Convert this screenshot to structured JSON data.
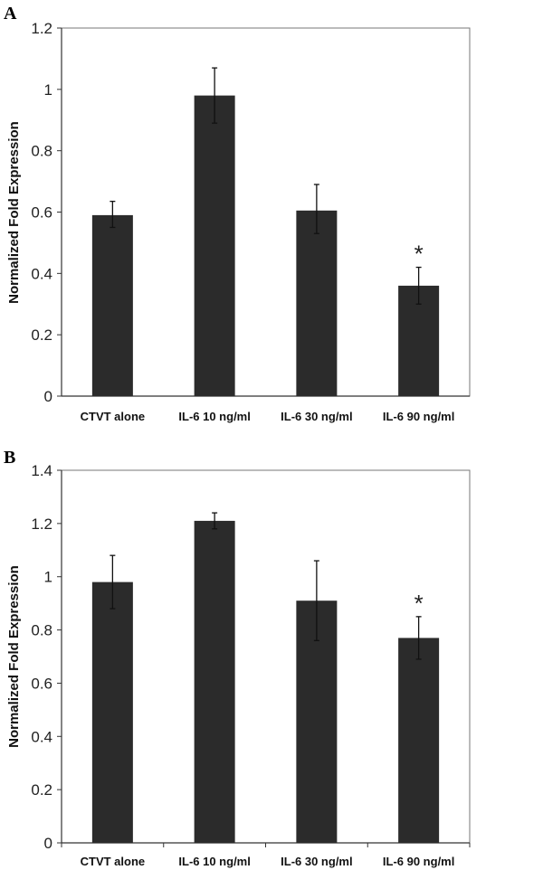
{
  "chart_data": [
    {
      "type": "bar",
      "panel_label": "A",
      "categories": [
        "CTVT alone",
        "IL-6 10 ng/ml",
        "IL-6 30 ng/ml",
        "IL-6 90 ng/ml"
      ],
      "values": [
        0.59,
        0.98,
        0.605,
        0.36
      ],
      "error_low": [
        0.55,
        0.89,
        0.53,
        0.3
      ],
      "error_high": [
        0.635,
        1.07,
        0.69,
        0.42
      ],
      "significance": [
        "",
        "",
        "",
        "*"
      ],
      "ylabel": "Normalized Fold Expression",
      "xlabel": "",
      "ylim": [
        0,
        1.2
      ],
      "yticks": [
        "0",
        "0.2",
        "0.4",
        "0.6",
        "0.8",
        "1",
        "1.2"
      ],
      "ytick_values": [
        0,
        0.2,
        0.4,
        0.6,
        0.8,
        1,
        1.2
      ],
      "bar_color": "#2b2b2b",
      "grid": false,
      "x_tick_marks": false
    },
    {
      "type": "bar",
      "panel_label": "B",
      "categories": [
        "CTVT alone",
        "IL-6 10 ng/ml",
        "IL-6 30 ng/ml",
        "IL-6 90 ng/ml"
      ],
      "values": [
        0.98,
        1.21,
        0.91,
        0.77
      ],
      "error_low": [
        0.88,
        1.18,
        0.76,
        0.69
      ],
      "error_high": [
        1.08,
        1.24,
        1.06,
        0.85
      ],
      "significance": [
        "",
        "",
        "",
        "*"
      ],
      "ylabel": "Normalized Fold Expression",
      "xlabel": "",
      "ylim": [
        0,
        1.4
      ],
      "yticks": [
        "0",
        "0.2",
        "0.4",
        "0.6",
        "0.8",
        "1",
        "1.2",
        "1.4"
      ],
      "ytick_values": [
        0,
        0.2,
        0.4,
        0.6,
        0.8,
        1,
        1.2,
        1.4
      ],
      "bar_color": "#2b2b2b",
      "grid": false,
      "x_tick_marks": true
    }
  ]
}
